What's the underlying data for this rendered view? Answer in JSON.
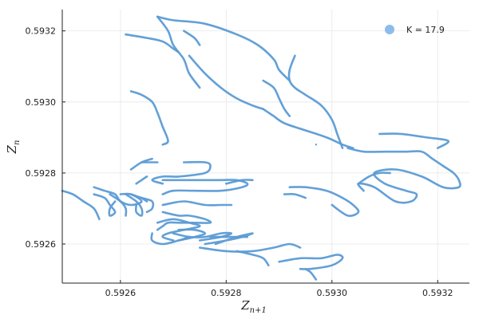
{
  "chart_data": {
    "type": "scatter",
    "title": "",
    "xlabel": "Z",
    "xlabel_sub": "n+1",
    "ylabel": "Z",
    "ylabel_sub": "n",
    "xlim": [
      0.59249,
      0.59326
    ],
    "ylim": [
      0.59249,
      0.59326
    ],
    "grid": true,
    "legend_position": "top-right",
    "x_ticks": [
      0.5926,
      0.5928,
      0.593,
      0.5932
    ],
    "x_tick_labels": [
      "0.5926",
      "0.5928",
      "0.5930",
      "0.5932"
    ],
    "y_ticks": [
      0.5926,
      0.5928,
      0.593,
      0.5932
    ],
    "y_tick_labels": [
      "0.5926",
      "0.5928",
      "0.5930",
      "0.5932"
    ],
    "series": [
      {
        "name": "K = 17.9",
        "color": "#5b9bd5",
        "legend_color": "#8cbcec",
        "curves": [
          [
            [
              0.59267,
              0.59324
            ],
            [
              0.5927,
              0.59323
            ],
            [
              0.59276,
              0.59322
            ],
            [
              0.59282,
              0.59319
            ],
            [
              0.59286,
              0.59316
            ],
            [
              0.59289,
              0.59312
            ],
            [
              0.5929,
              0.59309
            ],
            [
              0.59292,
              0.59306
            ]
          ],
          [
            [
              0.59267,
              0.59324
            ],
            [
              0.59269,
              0.5932
            ],
            [
              0.5927,
              0.59316
            ],
            [
              0.59272,
              0.59312
            ],
            [
              0.59273,
              0.59308
            ],
            [
              0.59275,
              0.59304
            ]
          ],
          [
            [
              0.59261,
              0.59319
            ],
            [
              0.59265,
              0.59318
            ],
            [
              0.59268,
              0.59317
            ],
            [
              0.5927,
              0.59315
            ],
            [
              0.59271,
              0.59314
            ]
          ],
          [
            [
              0.59272,
              0.5932
            ],
            [
              0.59274,
              0.59318
            ],
            [
              0.59275,
              0.59316
            ]
          ],
          [
            [
              0.59262,
              0.59303
            ],
            [
              0.59264,
              0.59302
            ],
            [
              0.59266,
              0.593
            ],
            [
              0.59267,
              0.59297
            ],
            [
              0.59268,
              0.59293
            ],
            [
              0.59269,
              0.59289
            ],
            [
              0.59268,
              0.59288
            ]
          ],
          [
            [
              0.59273,
              0.59313
            ],
            [
              0.59276,
              0.59308
            ],
            [
              0.59279,
              0.59304
            ],
            [
              0.59282,
              0.59301
            ],
            [
              0.59285,
              0.59299
            ],
            [
              0.59287,
              0.59298
            ]
          ],
          [
            [
              0.59293,
              0.59313
            ],
            [
              0.59292,
              0.59309
            ],
            [
              0.59292,
              0.59306
            ],
            [
              0.59293,
              0.59304
            ],
            [
              0.59295,
              0.59302
            ],
            [
              0.59298,
              0.59299
            ],
            [
              0.593,
              0.59295
            ],
            [
              0.59301,
              0.59291
            ],
            [
              0.59302,
              0.59287
            ]
          ],
          [
            [
              0.59287,
              0.59306
            ],
            [
              0.59289,
              0.59304
            ],
            [
              0.5929,
              0.59301
            ],
            [
              0.59291,
              0.59298
            ],
            [
              0.59292,
              0.59296
            ]
          ],
          [
            [
              0.59287,
              0.59298
            ],
            [
              0.59288,
              0.59297
            ],
            [
              0.59289,
              0.59296
            ],
            [
              0.59291,
              0.59294
            ],
            [
              0.59295,
              0.59292
            ],
            [
              0.59299,
              0.5929
            ],
            [
              0.59302,
              0.59288
            ],
            [
              0.59304,
              0.59287
            ]
          ],
          [
            [
              0.59309,
              0.59291
            ],
            [
              0.59313,
              0.59291
            ],
            [
              0.59318,
              0.5929
            ],
            [
              0.59322,
              0.59289
            ],
            [
              0.5932,
              0.59287
            ]
          ],
          [
            [
              0.59303,
              0.59287
            ],
            [
              0.59306,
              0.59286
            ],
            [
              0.5931,
              0.59286
            ],
            [
              0.59314,
              0.59286
            ],
            [
              0.59317,
              0.59286
            ],
            [
              0.59319,
              0.59284
            ],
            [
              0.59321,
              0.59282
            ],
            [
              0.59323,
              0.5928
            ],
            [
              0.59324,
              0.59278
            ],
            [
              0.59324,
              0.59276
            ],
            [
              0.59321,
              0.59276
            ],
            [
              0.59317,
              0.59279
            ],
            [
              0.59312,
              0.59281
            ],
            [
              0.59308,
              0.5928
            ],
            [
              0.5931,
              0.59277
            ],
            [
              0.59314,
              0.59275
            ],
            [
              0.59316,
              0.59274
            ],
            [
              0.59315,
              0.59272
            ],
            [
              0.59312,
              0.59272
            ],
            [
              0.59308,
              0.59276
            ],
            [
              0.59305,
              0.59277
            ],
            [
              0.59306,
              0.59275
            ]
          ],
          [
            [
              0.59311,
              0.5928
            ],
            [
              0.59309,
              0.5928
            ],
            [
              0.59307,
              0.59279
            ],
            [
              0.59305,
              0.59277
            ]
          ],
          [
            [
              0.59292,
              0.59276
            ],
            [
              0.59295,
              0.59276
            ],
            [
              0.59299,
              0.59275
            ],
            [
              0.59302,
              0.59273
            ],
            [
              0.59304,
              0.59271
            ],
            [
              0.59305,
              0.59269
            ],
            [
              0.59303,
              0.59268
            ],
            [
              0.593,
              0.59271
            ]
          ],
          [
            [
              0.59255,
              0.59276
            ],
            [
              0.59257,
              0.59275
            ],
            [
              0.59259,
              0.59274
            ],
            [
              0.5926,
              0.59272
            ],
            [
              0.59262,
              0.59271
            ],
            [
              0.59264,
              0.59272
            ],
            [
              0.59262,
              0.59274
            ],
            [
              0.5926,
              0.59274
            ]
          ],
          [
            [
              0.59255,
              0.59274
            ],
            [
              0.59257,
              0.59273
            ],
            [
              0.59258,
              0.59271
            ],
            [
              0.59259,
              0.59269
            ],
            [
              0.59258,
              0.59268
            ],
            [
              0.59258,
              0.5927
            ],
            [
              0.59259,
              0.59272
            ]
          ],
          [
            [
              0.59258,
              0.59274
            ],
            [
              0.5926,
              0.59272
            ],
            [
              0.59261,
              0.5927
            ],
            [
              0.59261,
              0.59268
            ]
          ],
          [
            [
              0.59261,
              0.59274
            ],
            [
              0.59263,
              0.59272
            ],
            [
              0.59264,
              0.5927
            ],
            [
              0.59264,
              0.59268
            ],
            [
              0.59263,
              0.59269
            ],
            [
              0.59263,
              0.59271
            ]
          ],
          [
            [
              0.59262,
              0.59274
            ],
            [
              0.59264,
              0.59273
            ],
            [
              0.59266,
              0.59272
            ],
            [
              0.59266,
              0.5927
            ],
            [
              0.59265,
              0.59269
            ]
          ],
          [
            [
              0.59249,
              0.59275
            ],
            [
              0.59251,
              0.59274
            ],
            [
              0.59253,
              0.59272
            ],
            [
              0.59255,
              0.5927
            ],
            [
              0.59256,
              0.59267
            ]
          ],
          [
            [
              0.59264,
              0.59273
            ],
            [
              0.59265,
              0.59272
            ]
          ],
          [
            [
              0.59263,
              0.59277
            ],
            [
              0.59264,
              0.59278
            ],
            [
              0.59265,
              0.59279
            ]
          ],
          [
            [
              0.59262,
              0.59281
            ],
            [
              0.59264,
              0.59283
            ],
            [
              0.59266,
              0.59284
            ]
          ],
          [
            [
              0.59264,
              0.59283
            ],
            [
              0.59265,
              0.59283
            ],
            [
              0.59267,
              0.59283
            ]
          ],
          [
            [
              0.59272,
              0.59283
            ],
            [
              0.59276,
              0.59283
            ],
            [
              0.59277,
              0.59282
            ],
            [
              0.59276,
              0.5928
            ],
            [
              0.59271,
              0.59279
            ],
            [
              0.59268,
              0.59279
            ],
            [
              0.59266,
              0.59278
            ],
            [
              0.59268,
              0.59277
            ]
          ],
          [
            [
              0.59268,
              0.59278
            ],
            [
              0.59273,
              0.59278
            ],
            [
              0.59279,
              0.59278
            ],
            [
              0.59282,
              0.59278
            ],
            [
              0.59284,
              0.59277
            ],
            [
              0.59283,
              0.59276
            ],
            [
              0.59279,
              0.59275
            ],
            [
              0.59274,
              0.59275
            ],
            [
              0.5927,
              0.59275
            ],
            [
              0.59268,
              0.59274
            ]
          ],
          [
            [
              0.5928,
              0.59277
            ],
            [
              0.59283,
              0.59278
            ],
            [
              0.59285,
              0.59278
            ]
          ],
          [
            [
              0.59291,
              0.59274
            ],
            [
              0.59293,
              0.59274
            ],
            [
              0.59295,
              0.59273
            ]
          ],
          [
            [
              0.59268,
              0.59271
            ],
            [
              0.59272,
              0.59272
            ],
            [
              0.59276,
              0.59271
            ],
            [
              0.59279,
              0.59271
            ],
            [
              0.59281,
              0.59271
            ]
          ],
          [
            [
              0.59268,
              0.59269
            ],
            [
              0.59271,
              0.59268
            ],
            [
              0.59273,
              0.59268
            ],
            [
              0.59276,
              0.59267
            ],
            [
              0.59277,
              0.59266
            ],
            [
              0.59274,
              0.59266
            ],
            [
              0.59271,
              0.59266
            ],
            [
              0.59269,
              0.59266
            ],
            [
              0.59268,
              0.59265
            ],
            [
              0.59267,
              0.59264
            ]
          ],
          [
            [
              0.59267,
              0.59266
            ],
            [
              0.5927,
              0.59267
            ],
            [
              0.59273,
              0.59266
            ],
            [
              0.59275,
              0.59265
            ],
            [
              0.59272,
              0.59264
            ],
            [
              0.59269,
              0.59263
            ],
            [
              0.59268,
              0.59262
            ],
            [
              0.5927,
              0.59261
            ]
          ],
          [
            [
              0.59271,
              0.59264
            ],
            [
              0.59274,
              0.59264
            ],
            [
              0.59276,
              0.59263
            ],
            [
              0.59274,
              0.59262
            ],
            [
              0.59271,
              0.59261
            ]
          ],
          [
            [
              0.5927,
              0.59263
            ],
            [
              0.59273,
              0.59262
            ],
            [
              0.59276,
              0.59262
            ],
            [
              0.59279,
              0.59263
            ],
            [
              0.59281,
              0.59263
            ],
            [
              0.59279,
              0.59262
            ],
            [
              0.59275,
              0.59261
            ]
          ],
          [
            [
              0.59276,
              0.5926
            ],
            [
              0.5928,
              0.59261
            ],
            [
              0.59283,
              0.59262
            ],
            [
              0.59285,
              0.59263
            ],
            [
              0.59282,
              0.59262
            ],
            [
              0.59278,
              0.5926
            ]
          ],
          [
            [
              0.59277,
              0.59262
            ],
            [
              0.5928,
              0.59262
            ],
            [
              0.59284,
              0.59262
            ]
          ],
          [
            [
              0.59266,
              0.59263
            ],
            [
              0.59266,
              0.59261
            ],
            [
              0.59268,
              0.5926
            ],
            [
              0.59271,
              0.59261
            ],
            [
              0.59273,
              0.59262
            ]
          ],
          [
            [
              0.59275,
              0.59259
            ],
            [
              0.5928,
              0.59258
            ],
            [
              0.59285,
              0.59258
            ],
            [
              0.59289,
              0.59259
            ],
            [
              0.59292,
              0.5926
            ],
            [
              0.59294,
              0.59259
            ]
          ],
          [
            [
              0.59282,
              0.59258
            ],
            [
              0.59285,
              0.59257
            ],
            [
              0.59287,
              0.59256
            ],
            [
              0.59288,
              0.59254
            ]
          ],
          [
            [
              0.5929,
              0.59255
            ],
            [
              0.59294,
              0.59256
            ],
            [
              0.59298,
              0.59256
            ],
            [
              0.59301,
              0.59257
            ],
            [
              0.59302,
              0.59256
            ],
            [
              0.593,
              0.59254
            ],
            [
              0.59296,
              0.59253
            ],
            [
              0.59294,
              0.59253
            ]
          ],
          [
            [
              0.59295,
              0.59253
            ],
            [
              0.59296,
              0.59252
            ],
            [
              0.59297,
              0.5925
            ]
          ]
        ]
      }
    ],
    "markers": [
      [
        0.59297,
        0.59288
      ]
    ]
  }
}
